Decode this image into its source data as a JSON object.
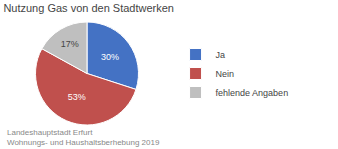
{
  "chart_data": {
    "type": "pie",
    "title": "Nutzung Gas von den Stadtwerken",
    "categories": [
      "Ja",
      "Nein",
      "fehlende Angaben"
    ],
    "values": [
      30,
      53,
      17
    ],
    "value_labels": [
      "30%",
      "53%",
      "17%"
    ],
    "colors": [
      "#4472c4",
      "#c0504d",
      "#bfbfbf"
    ],
    "data_labels": true,
    "legend": "right",
    "annotations": [
      "Landeshauptstadt Erfurt",
      "Wohnungs- und Haushaltsberhebung 2019"
    ]
  }
}
